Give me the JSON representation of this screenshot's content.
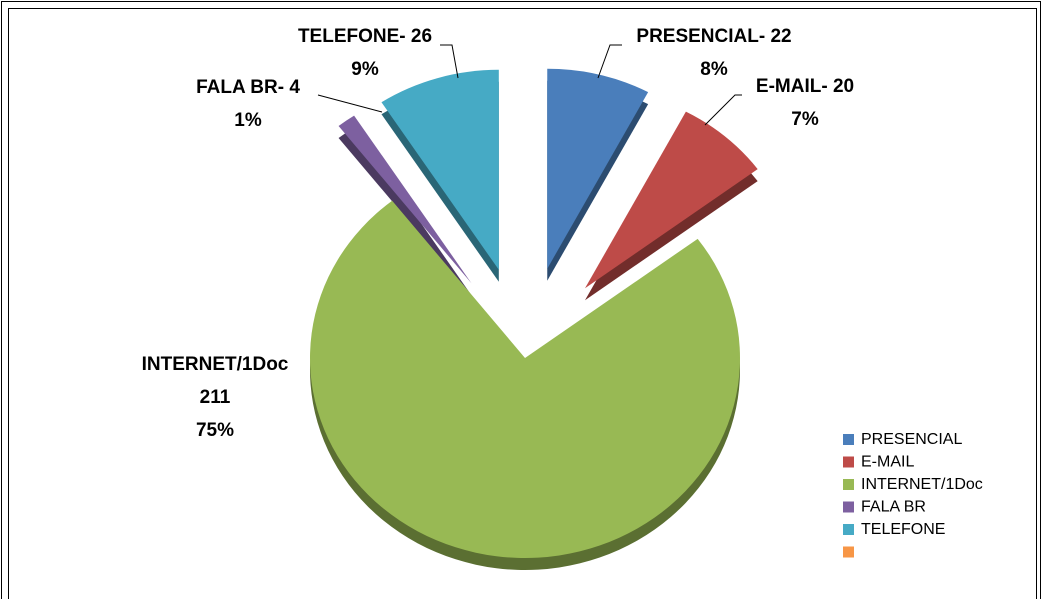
{
  "chart_data": {
    "type": "pie",
    "categories": [
      "PRESENCIAL",
      "E-MAIL",
      "INTERNET/1Doc",
      "FALA BR",
      "TELEFONE",
      null
    ],
    "values": [
      22,
      20,
      211,
      4,
      26,
      null
    ],
    "data_labels": [
      [
        "PRESENCIAL- 22",
        "8%"
      ],
      [
        "E-MAIL- 20",
        "7%"
      ],
      [
        "INTERNET/1Doc",
        "211",
        "75%"
      ],
      [
        "FALA BR- 4",
        "1%"
      ],
      [
        "TELEFONE- 26",
        "9%"
      ],
      null
    ],
    "colors": [
      "#4a7ebb",
      "#be4b48",
      "#98b954",
      "#7d60a0",
      "#46aac5",
      "#f79646"
    ],
    "legend": "bottom-right"
  }
}
